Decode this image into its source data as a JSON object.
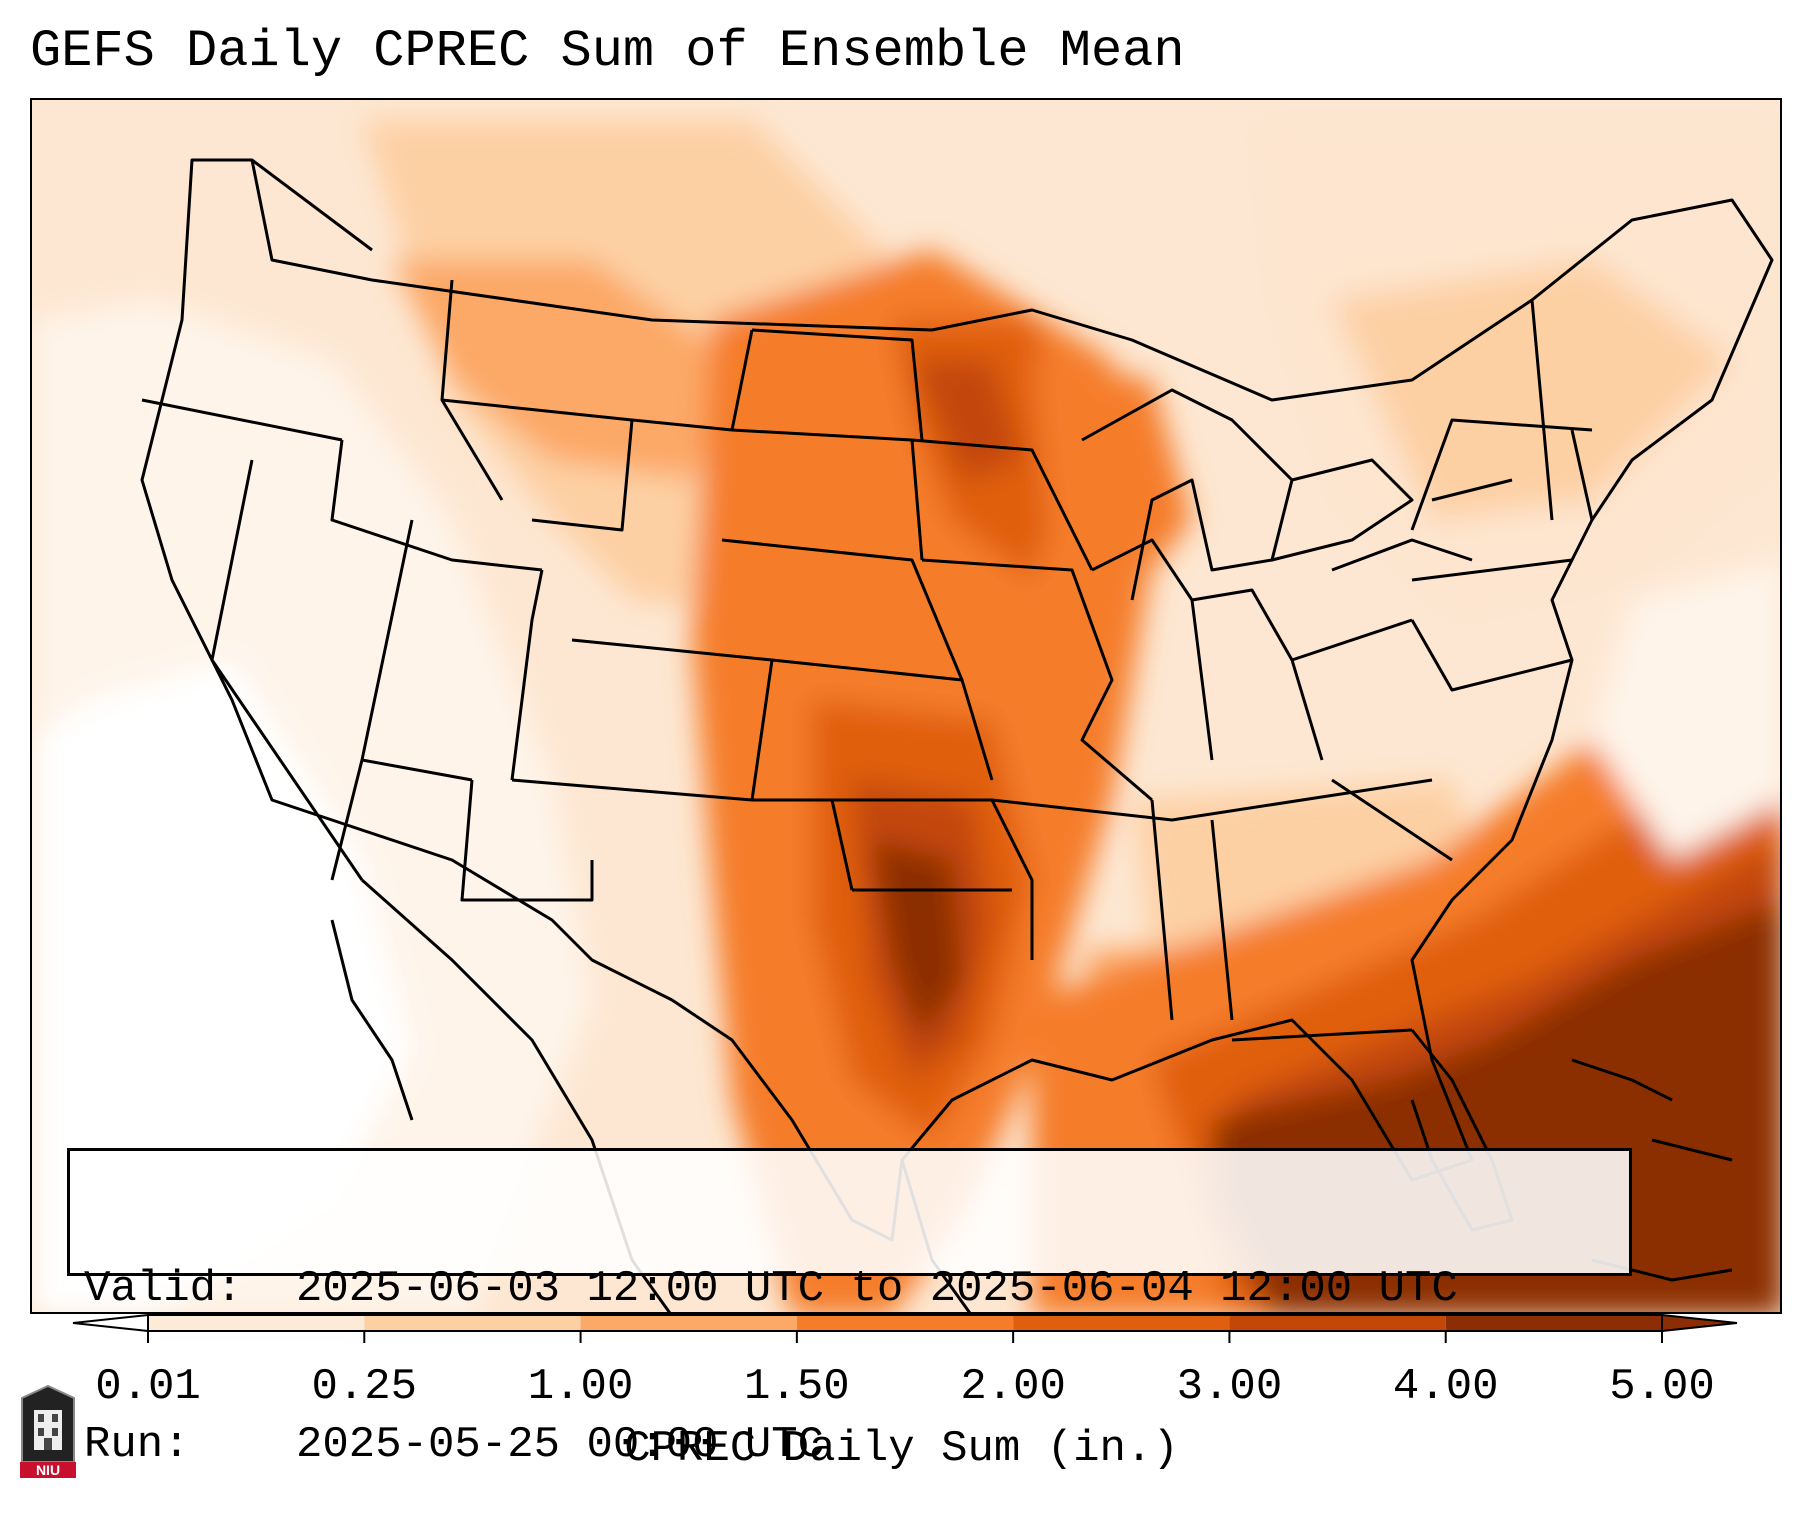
{
  "title": "GEFS Daily CPREC Sum of Ensemble Mean",
  "info": {
    "valid_label": "Valid:",
    "valid_value": "2025-06-03 12:00 UTC to 2025-06-04 12:00 UTC",
    "run_label": "Run:",
    "run_value": "2025-05-25 00:00 UTC"
  },
  "colorbar": {
    "title": "CPREC Daily Sum (in.)",
    "ticks": [
      "0.01",
      "0.25",
      "1.00",
      "1.50",
      "2.00",
      "3.00",
      "4.00",
      "5.00"
    ],
    "colors": [
      "#fdebd8",
      "#fdd0a4",
      "#fca866",
      "#f57d2a",
      "#e05f0e",
      "#c24708",
      "#8b2d05"
    ]
  },
  "logo": {
    "text": "NIU"
  },
  "map": {
    "region": "Continental United States",
    "colors": {
      "trace": "#fef4ea",
      "light": "#fde5cf",
      "low": "#fdd0a4",
      "mid": "#fca866",
      "orange": "#f57d2a",
      "dark_orange": "#e05f0e",
      "heavy": "#c24708",
      "extreme": "#8b2d05",
      "border": "#000000"
    }
  }
}
